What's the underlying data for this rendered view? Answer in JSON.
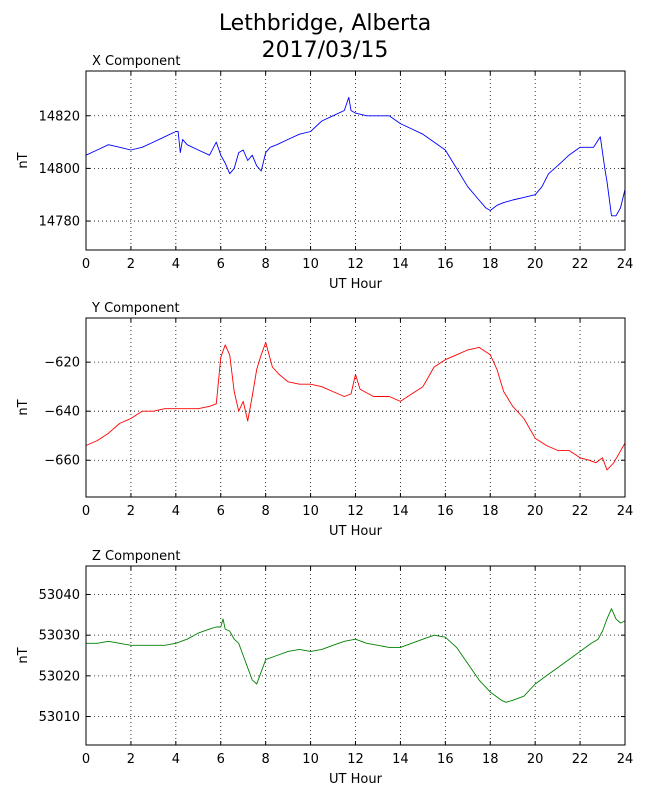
{
  "title_line1": "Lethbridge, Alberta",
  "title_line2": "2017/03/15",
  "chart_data": [
    {
      "type": "line",
      "subtitle": "X Component",
      "xlabel": "UT Hour",
      "ylabel": "nT",
      "xlim": [
        0,
        24
      ],
      "ylim": [
        14769,
        14837
      ],
      "xticks": [
        0,
        2,
        4,
        6,
        8,
        10,
        12,
        14,
        16,
        18,
        20,
        22,
        24
      ],
      "yticks": [
        14780,
        14800,
        14820
      ],
      "grid": true,
      "color": "#0000ff",
      "series": [
        {
          "x": [
            0,
            0.5,
            1,
            1.5,
            2,
            2.5,
            3,
            3.5,
            4,
            4.1,
            4.2,
            4.3,
            4.5,
            5,
            5.5,
            5.8,
            6,
            6.2,
            6.4,
            6.6,
            6.8,
            7,
            7.2,
            7.4,
            7.6,
            7.8,
            8,
            8.2,
            8.5,
            9,
            9.5,
            10,
            10.5,
            11,
            11.5,
            11.7,
            11.8,
            12,
            12.5,
            13,
            13.5,
            14,
            14.5,
            15,
            15.5,
            16,
            16.5,
            17,
            17.5,
            17.8,
            18,
            18.3,
            18.6,
            19,
            19.5,
            20,
            20.3,
            20.6,
            21,
            21.5,
            22,
            22.3,
            22.6,
            22.9,
            23.1,
            23.2,
            23.4,
            23.6,
            23.8,
            24
          ],
          "y": [
            14805,
            14807,
            14809,
            14808,
            14807,
            14808,
            14810,
            14812,
            14814,
            14814,
            14806,
            14811,
            14809,
            14807,
            14805,
            14810,
            14805,
            14802,
            14798,
            14800,
            14806,
            14807,
            14803,
            14805,
            14801,
            14799,
            14806,
            14808,
            14809,
            14811,
            14813,
            14814,
            14818,
            14820,
            14822,
            14827,
            14822,
            14821,
            14820,
            14820,
            14820,
            14817,
            14815,
            14813,
            14810,
            14807,
            14800,
            14793,
            14788,
            14785,
            14784,
            14786,
            14787,
            14788,
            14789,
            14790,
            14793,
            14798,
            14801,
            14805,
            14808,
            14808,
            14808,
            14812,
            14800,
            14795,
            14782,
            14782,
            14785,
            14792
          ]
        }
      ]
    },
    {
      "type": "line",
      "subtitle": "Y Component",
      "xlabel": "UT Hour",
      "ylabel": "nT",
      "xlim": [
        0,
        24
      ],
      "ylim": [
        -675,
        -602
      ],
      "xticks": [
        0,
        2,
        4,
        6,
        8,
        10,
        12,
        14,
        16,
        18,
        20,
        22,
        24
      ],
      "yticks": [
        -620,
        -640,
        -660
      ],
      "grid": true,
      "color": "#ff0000",
      "series": [
        {
          "x": [
            0,
            0.5,
            1,
            1.5,
            2,
            2.5,
            3,
            3.5,
            4,
            4.5,
            5,
            5.5,
            5.8,
            6,
            6.2,
            6.4,
            6.6,
            6.8,
            7,
            7.2,
            7.4,
            7.6,
            7.8,
            8,
            8.3,
            8.6,
            9,
            9.5,
            10,
            10.5,
            11,
            11.5,
            11.8,
            12,
            12.2,
            12.4,
            12.8,
            13,
            13.5,
            14,
            14.5,
            15,
            15.5,
            16,
            16.5,
            17,
            17.5,
            18,
            18.3,
            18.6,
            19,
            19.5,
            20,
            20.5,
            21,
            21.5,
            22,
            22.4,
            22.7,
            23,
            23.2,
            23.5,
            24
          ],
          "y": [
            -654,
            -652,
            -649,
            -645,
            -643,
            -640,
            -640,
            -639,
            -639,
            -639,
            -639,
            -638,
            -637,
            -618,
            -613,
            -617,
            -632,
            -640,
            -636,
            -644,
            -634,
            -623,
            -617,
            -612,
            -622,
            -625,
            -628,
            -629,
            -629,
            -630,
            -632,
            -634,
            -633,
            -625,
            -631,
            -632,
            -634,
            -634,
            -634,
            -636,
            -633,
            -630,
            -622,
            -619,
            -617,
            -615,
            -614,
            -617,
            -623,
            -632,
            -638,
            -643,
            -651,
            -654,
            -656,
            -656,
            -659,
            -660,
            -661,
            -659,
            -664,
            -661,
            -653
          ]
        }
      ]
    },
    {
      "type": "line",
      "subtitle": "Z Component",
      "xlabel": "UT Hour",
      "ylabel": "nT",
      "xlim": [
        0,
        24
      ],
      "ylim": [
        53003,
        53047
      ],
      "xticks": [
        0,
        2,
        4,
        6,
        8,
        10,
        12,
        14,
        16,
        18,
        20,
        22,
        24
      ],
      "yticks": [
        53040,
        53030,
        53020,
        53010
      ],
      "grid": true,
      "color": "#008000",
      "series": [
        {
          "x": [
            0,
            0.5,
            1,
            1.5,
            2,
            2.5,
            3,
            3.5,
            4,
            4.5,
            5,
            5.5,
            5.8,
            6,
            6.1,
            6.2,
            6.4,
            6.6,
            6.8,
            7,
            7.2,
            7.4,
            7.6,
            7.8,
            8,
            8.5,
            9,
            9.5,
            10,
            10.5,
            11,
            11.5,
            12,
            12.5,
            13,
            13.5,
            14,
            14.5,
            15,
            15.5,
            16,
            16.5,
            17,
            17.5,
            18,
            18.5,
            18.7,
            19,
            19.5,
            20,
            20.5,
            21,
            21.5,
            22,
            22.5,
            22.8,
            23,
            23.2,
            23.4,
            23.6,
            23.8,
            24
          ],
          "y": [
            53028,
            53028,
            53028.5,
            53028,
            53027.5,
            53027.5,
            53027.5,
            53027.5,
            53028,
            53029,
            53030.5,
            53031.5,
            53032,
            53032,
            53034,
            53031.5,
            53031,
            53029,
            53028,
            53025,
            53022,
            53019,
            53018,
            53021,
            53024,
            53025,
            53026,
            53026.5,
            53026,
            53026.5,
            53027.5,
            53028.5,
            53029,
            53028,
            53027.5,
            53027,
            53027,
            53028,
            53029,
            53030,
            53029.5,
            53027,
            53023,
            53019,
            53016,
            53014,
            53013.5,
            53014,
            53015,
            53018,
            53020,
            53022,
            53024,
            53026,
            53028,
            53029,
            53031,
            53034,
            53036.5,
            53034,
            53033,
            53033.5
          ]
        }
      ]
    }
  ]
}
